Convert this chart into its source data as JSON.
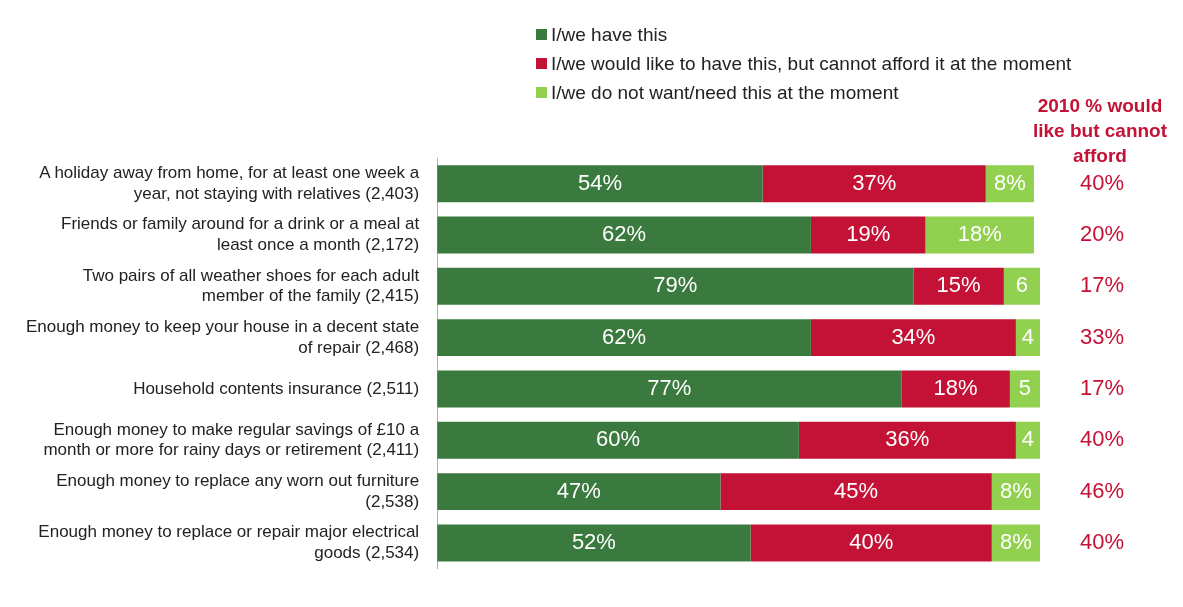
{
  "chart_data": {
    "type": "bar",
    "orientation": "horizontal",
    "stacked": true,
    "legend": "top",
    "tick_labels": "y",
    "xlim": [
      0,
      100
    ],
    "categories": [
      "A holiday away from home, for at least one week a year, not staying with relatives (2,403)",
      "Friends or family around for a drink or a meal at least once a month (2,172)",
      "Two pairs of all weather shoes for each adult member of the family (2,415)",
      "Enough money to keep your house in a decent state of repair (2,468)",
      "Household contents insurance (2,511)",
      "Enough money to make regular savings of £10 a month or more for rainy days or retirement (2,411)",
      "Enough money to replace any worn out furniture (2,538)",
      "Enough money to replace or repair major electrical goods (2,534)"
    ],
    "series": [
      {
        "name": "I/we have this",
        "color": "#3b7a3e",
        "values": [
          54,
          62,
          79,
          62,
          77,
          60,
          47,
          52
        ],
        "value_labels": [
          "54%",
          "62%",
          "79%",
          "62%",
          "77%",
          "60%",
          "47%",
          "52%"
        ]
      },
      {
        "name": "I/we would like to have this, but cannot afford it at the moment",
        "color": "#c41236",
        "values": [
          37,
          19,
          15,
          34,
          18,
          36,
          45,
          40
        ],
        "value_labels": [
          "37%",
          "19%",
          "15%",
          "34%",
          "18%",
          "36%",
          "45%",
          "40%"
        ]
      },
      {
        "name": "I/we do not want/need this at the moment",
        "color": "#92d050",
        "values": [
          8,
          18,
          6,
          4,
          5,
          4,
          8,
          8
        ],
        "value_labels": [
          "8%",
          "18%",
          "6",
          "4",
          "5",
          "4",
          "8%",
          "8%"
        ]
      }
    ],
    "annotations": [
      "2010 % would like but cannot afford",
      "40%",
      "20%",
      "17%",
      "33%",
      "17%",
      "40%",
      "46%",
      "40%"
    ]
  }
}
